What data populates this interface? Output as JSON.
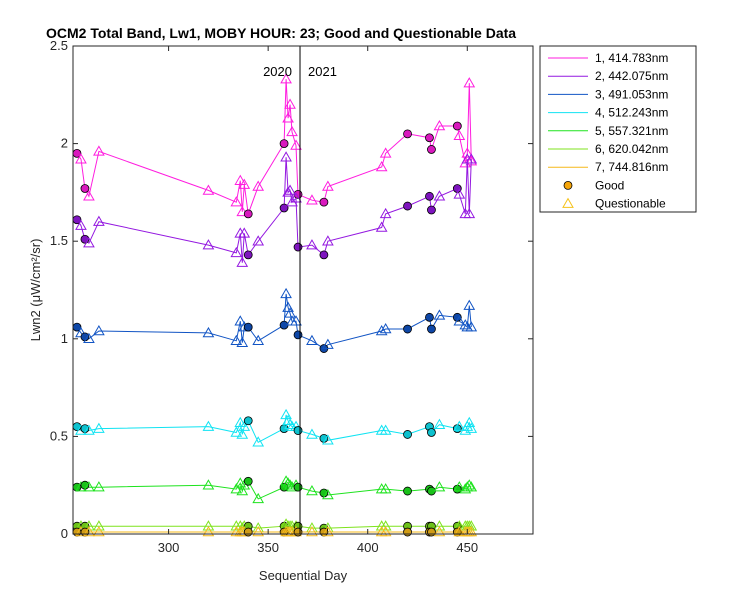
{
  "chart_data": {
    "type": "line",
    "title": "OCM2 Total Band, Lw1, MOBY HOUR: 23;  Good and Questionable Data",
    "xlabel": "Sequential Day",
    "ylabel": "Lwn2 (μW/cm²/sr)",
    "xlim": [
      252,
      483
    ],
    "ylim": [
      0,
      2.5
    ],
    "xticks": [
      300,
      350,
      400,
      450
    ],
    "yticks": [
      0,
      0.5,
      1,
      1.5,
      2,
      2.5
    ],
    "ytick_labels": [
      "0",
      "0.5",
      "1",
      "1.5",
      "2",
      "2.5"
    ],
    "grid": false,
    "legend_position": "outside-right",
    "year_divider": {
      "x": 366,
      "left_label": "2020",
      "right_label": "2021"
    },
    "x": [
      254,
      256,
      258,
      260,
      265,
      320,
      334,
      336,
      337,
      338,
      340,
      345,
      358,
      359,
      360,
      361,
      362,
      364,
      365,
      372,
      378,
      380,
      407,
      409,
      420,
      431,
      432,
      436,
      445,
      446,
      449,
      450,
      451,
      452
    ],
    "quality": [
      "G",
      "Q",
      "G",
      "Q",
      "Q",
      "Q",
      "Q",
      "Q",
      "Q",
      "Q",
      "G",
      "Q",
      "G",
      "Q",
      "Q",
      "Q",
      "Q",
      "Q",
      "G",
      "Q",
      "G",
      "Q",
      "Q",
      "Q",
      "G",
      "G",
      "G",
      "Q",
      "G",
      "Q",
      "Q",
      "Q",
      "Q",
      "Q"
    ],
    "series": [
      {
        "name": "1, 414.783nm",
        "color": "#ff1ddf",
        "values": [
          1.95,
          1.92,
          1.77,
          1.73,
          1.96,
          1.76,
          1.7,
          1.81,
          1.65,
          1.79,
          1.64,
          1.78,
          2.0,
          2.33,
          2.13,
          2.2,
          2.06,
          1.99,
          1.74,
          1.71,
          1.7,
          1.78,
          1.88,
          1.95,
          2.05,
          2.03,
          1.97,
          2.09,
          2.09,
          2.04,
          1.9,
          1.95,
          2.31,
          1.91
        ]
      },
      {
        "name": "2, 442.075nm",
        "color": "#9418e0",
        "values": [
          1.61,
          1.58,
          1.51,
          1.49,
          1.6,
          1.48,
          1.44,
          1.54,
          1.39,
          1.54,
          1.43,
          1.5,
          1.67,
          1.93,
          1.75,
          1.76,
          1.7,
          1.72,
          1.47,
          1.48,
          1.43,
          1.5,
          1.57,
          1.64,
          1.68,
          1.73,
          1.66,
          1.73,
          1.77,
          1.74,
          1.64,
          1.92,
          1.64,
          1.92
        ]
      },
      {
        "name": "3, 491.053nm",
        "color": "#1154c4",
        "values": [
          1.06,
          1.03,
          1.01,
          1.0,
          1.04,
          1.03,
          0.99,
          1.09,
          0.98,
          1.06,
          1.06,
          0.99,
          1.07,
          1.23,
          1.16,
          1.13,
          1.09,
          1.09,
          1.02,
          0.99,
          0.95,
          0.97,
          1.04,
          1.05,
          1.05,
          1.11,
          1.05,
          1.12,
          1.11,
          1.09,
          1.07,
          1.06,
          1.17,
          1.06
        ]
      },
      {
        "name": "4, 512.243nm",
        "color": "#10e3f2",
        "values": [
          0.55,
          0.53,
          0.54,
          0.53,
          0.54,
          0.55,
          0.52,
          0.57,
          0.51,
          0.55,
          0.58,
          0.47,
          0.54,
          0.61,
          0.58,
          0.56,
          0.55,
          0.55,
          0.53,
          0.51,
          0.49,
          0.48,
          0.53,
          0.53,
          0.51,
          0.55,
          0.52,
          0.56,
          0.54,
          0.55,
          0.53,
          0.55,
          0.57,
          0.54
        ]
      },
      {
        "name": "5, 557.321nm",
        "color": "#1ee31e",
        "values": [
          0.24,
          0.24,
          0.25,
          0.24,
          0.24,
          0.25,
          0.23,
          0.26,
          0.22,
          0.25,
          0.27,
          0.18,
          0.24,
          0.27,
          0.26,
          0.25,
          0.24,
          0.25,
          0.24,
          0.22,
          0.21,
          0.2,
          0.23,
          0.23,
          0.22,
          0.23,
          0.22,
          0.24,
          0.23,
          0.24,
          0.23,
          0.24,
          0.25,
          0.24
        ]
      },
      {
        "name": "6, 620.042nm",
        "color": "#7fe31d",
        "values": [
          0.04,
          0.04,
          0.04,
          0.04,
          0.04,
          0.04,
          0.04,
          0.04,
          0.03,
          0.04,
          0.04,
          0.03,
          0.04,
          0.05,
          0.04,
          0.04,
          0.04,
          0.04,
          0.04,
          0.03,
          0.03,
          0.03,
          0.04,
          0.04,
          0.04,
          0.04,
          0.04,
          0.04,
          0.04,
          0.04,
          0.04,
          0.04,
          0.04,
          0.04
        ]
      },
      {
        "name": "7, 744.816nm",
        "color": "#f5b81a",
        "values": [
          0.01,
          0.01,
          0.01,
          0.01,
          0.01,
          0.01,
          0.01,
          0.01,
          0.01,
          0.01,
          0.01,
          0.01,
          0.01,
          0.01,
          0.01,
          0.01,
          0.01,
          0.01,
          0.01,
          0.01,
          0.01,
          0.01,
          0.01,
          0.01,
          0.01,
          0.01,
          0.01,
          0.01,
          0.01,
          0.01,
          0.01,
          0.01,
          0.01,
          0.01
        ]
      }
    ],
    "marker_legend": [
      {
        "label": "Good",
        "marker": "circle",
        "color": "#f5a50a"
      },
      {
        "label": "Questionable",
        "marker": "triangle",
        "color": "#f5c21a"
      }
    ]
  }
}
